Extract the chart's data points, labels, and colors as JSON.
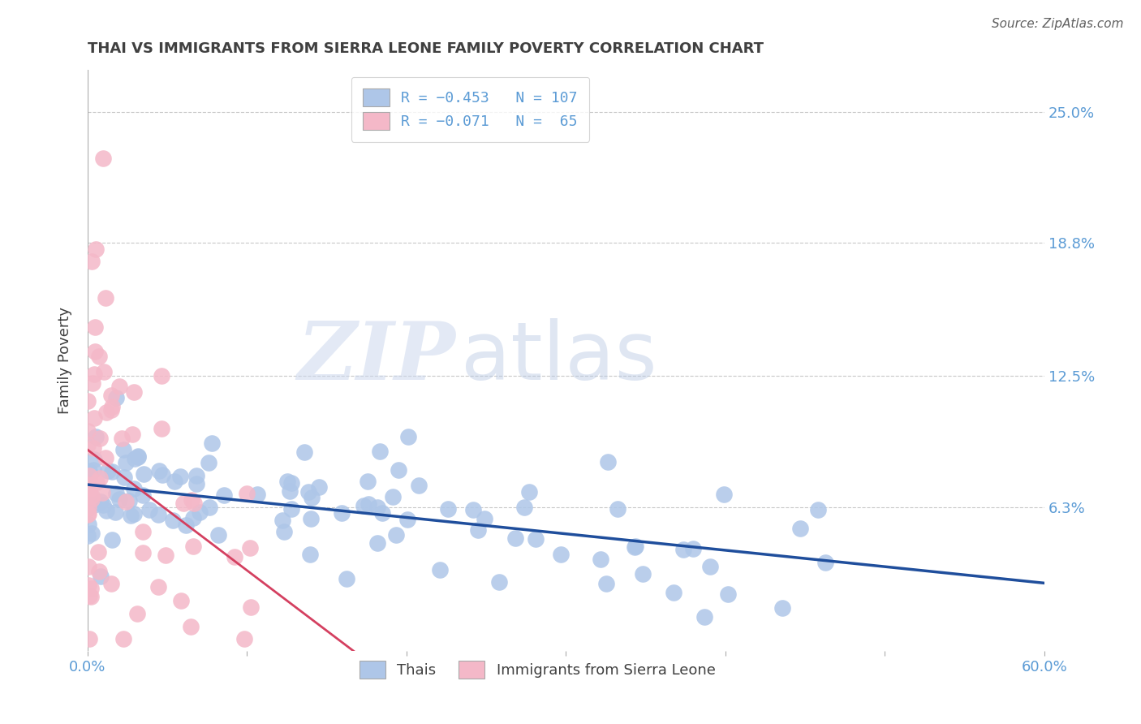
{
  "title": "THAI VS IMMIGRANTS FROM SIERRA LEONE FAMILY POVERTY CORRELATION CHART",
  "source": "Source: ZipAtlas.com",
  "ylabel": "Family Poverty",
  "watermark_zip": "ZIP",
  "watermark_atlas": "atlas",
  "legend_labels": [
    "Thais",
    "Immigrants from Sierra Leone"
  ],
  "xlim": [
    0.0,
    0.6
  ],
  "ylim": [
    -0.005,
    0.27
  ],
  "yticks": [
    0.063,
    0.125,
    0.188,
    0.25
  ],
  "ytick_labels": [
    "6.3%",
    "12.5%",
    "18.8%",
    "25.0%"
  ],
  "xticks": [
    0.0,
    0.1,
    0.2,
    0.3,
    0.4,
    0.5,
    0.6
  ],
  "xtick_labels": [
    "0.0%",
    "",
    "",
    "",
    "",
    "",
    "60.0%"
  ],
  "axis_color": "#5b9bd5",
  "title_color": "#404040",
  "grid_color": "#c8c8c8",
  "blue_dot_color": "#aec6e8",
  "pink_dot_color": "#f4b8c8",
  "blue_line_color": "#1f4e9c",
  "pink_line_color": "#d44060",
  "pink_line_dash_color": "#e090a8"
}
